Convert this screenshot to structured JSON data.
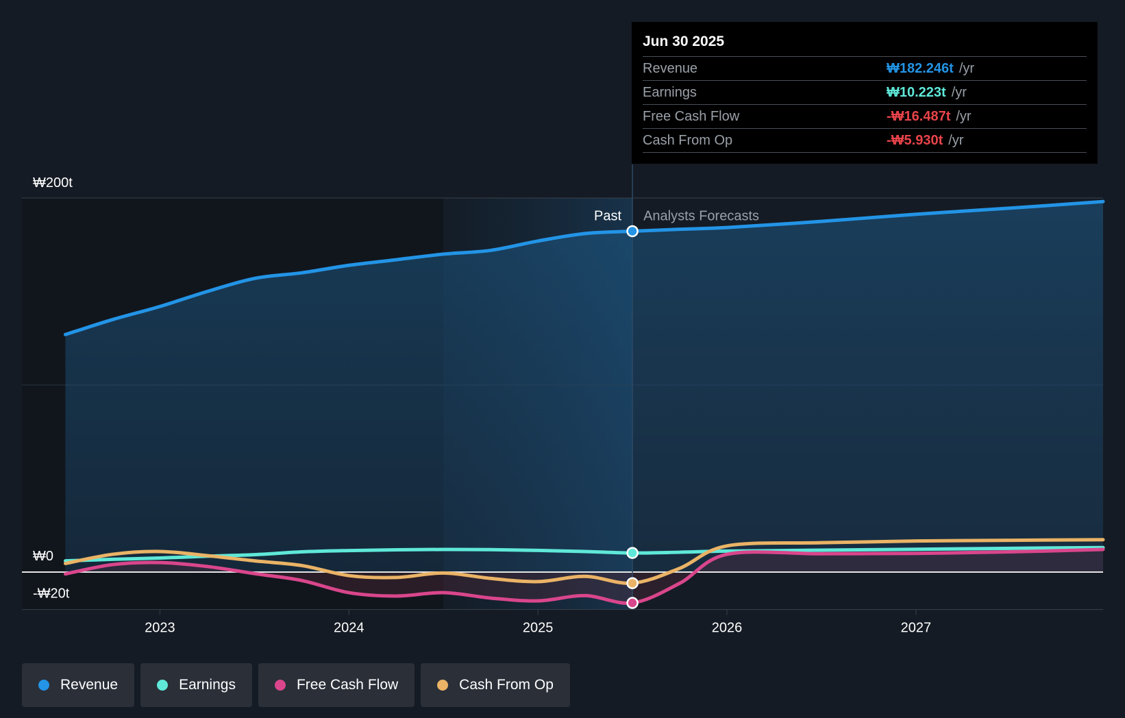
{
  "chart_data": {
    "type": "line",
    "currency_symbol": "₩",
    "y_axis": {
      "min": -20,
      "max": 200,
      "unit": "t",
      "labels": [
        "₩200t",
        "₩0",
        "-₩20t"
      ],
      "label_values": [
        200,
        0,
        -20
      ]
    },
    "x_axis": {
      "min": 2022.27,
      "max": 2027.99,
      "ticks": [
        "2023",
        "2024",
        "2025",
        "2026",
        "2027"
      ],
      "tick_values": [
        2023,
        2024,
        2025,
        2026,
        2027
      ]
    },
    "past_label": "Past",
    "forecast_label": "Analysts Forecasts",
    "divider_x": 2025.5,
    "highlight_start_x": 2024.5,
    "series": [
      {
        "name": "Revenue",
        "color": "#2394e6",
        "area": true,
        "points": [
          [
            2022.5,
            127
          ],
          [
            2022.75,
            135
          ],
          [
            2023.0,
            142
          ],
          [
            2023.25,
            150
          ],
          [
            2023.5,
            157
          ],
          [
            2023.75,
            160
          ],
          [
            2024.0,
            164
          ],
          [
            2024.25,
            167
          ],
          [
            2024.5,
            170
          ],
          [
            2024.75,
            172
          ],
          [
            2025.0,
            177
          ],
          [
            2025.25,
            181
          ],
          [
            2025.5,
            182.246
          ],
          [
            2025.75,
            183.3
          ],
          [
            2026.0,
            184.2
          ],
          [
            2026.5,
            187.5
          ],
          [
            2027.0,
            191.3
          ],
          [
            2027.5,
            194.6
          ],
          [
            2027.99,
            198.1
          ]
        ]
      },
      {
        "name": "Earnings",
        "color": "#5fe8d8",
        "area": false,
        "points": [
          [
            2022.5,
            6
          ],
          [
            2022.75,
            6.8
          ],
          [
            2023.0,
            7.5
          ],
          [
            2023.25,
            8.5
          ],
          [
            2023.5,
            9.3
          ],
          [
            2023.75,
            10.8
          ],
          [
            2024.0,
            11.5
          ],
          [
            2024.25,
            11.9
          ],
          [
            2024.5,
            12.1
          ],
          [
            2024.75,
            12
          ],
          [
            2025.0,
            11.6
          ],
          [
            2025.25,
            11
          ],
          [
            2025.5,
            10.223
          ],
          [
            2025.75,
            10.6
          ],
          [
            2026.0,
            11.2
          ],
          [
            2026.5,
            11.7
          ],
          [
            2027.0,
            12.2
          ],
          [
            2027.5,
            12.7
          ],
          [
            2027.99,
            13.1
          ]
        ]
      },
      {
        "name": "Free Cash Flow",
        "color": "#d9468c",
        "area": false,
        "points": [
          [
            2022.5,
            -1
          ],
          [
            2022.75,
            4
          ],
          [
            2023.0,
            5.1
          ],
          [
            2023.25,
            3
          ],
          [
            2023.5,
            -0.8
          ],
          [
            2023.75,
            -4.5
          ],
          [
            2024.0,
            -11
          ],
          [
            2024.25,
            -12.8
          ],
          [
            2024.5,
            -11
          ],
          [
            2024.75,
            -13.9
          ],
          [
            2025.0,
            -15.4
          ],
          [
            2025.25,
            -12.6
          ],
          [
            2025.5,
            -16.487
          ],
          [
            2025.75,
            -6
          ],
          [
            2026.0,
            9.5
          ],
          [
            2026.5,
            9.8
          ],
          [
            2027.0,
            10
          ],
          [
            2027.5,
            10.8
          ],
          [
            2027.99,
            12.1
          ]
        ]
      },
      {
        "name": "Cash From Op",
        "color": "#eab366",
        "area": false,
        "points": [
          [
            2022.5,
            4.6
          ],
          [
            2022.75,
            9.5
          ],
          [
            2023.0,
            11
          ],
          [
            2023.25,
            8.8
          ],
          [
            2023.5,
            6
          ],
          [
            2023.75,
            3.5
          ],
          [
            2024.0,
            -1.9
          ],
          [
            2024.25,
            -2.9
          ],
          [
            2024.5,
            -0.5
          ],
          [
            2024.75,
            -3.4
          ],
          [
            2025.0,
            -5.1
          ],
          [
            2025.25,
            -2.3
          ],
          [
            2025.5,
            -5.93
          ],
          [
            2025.75,
            2
          ],
          [
            2026.0,
            14
          ],
          [
            2026.5,
            15.7
          ],
          [
            2027.0,
            16.6
          ],
          [
            2027.5,
            17
          ],
          [
            2027.99,
            17.3
          ]
        ]
      }
    ]
  },
  "tooltip": {
    "date": "Jun 30 2025",
    "rows": [
      {
        "label": "Revenue",
        "value": "₩182.246t",
        "unit": "/yr",
        "color": "#2394e6"
      },
      {
        "label": "Earnings",
        "value": "₩10.223t",
        "unit": "/yr",
        "color": "#5fe8d8"
      },
      {
        "label": "Free Cash Flow",
        "value": "-₩16.487t",
        "unit": "/yr",
        "color": "#e8444a"
      },
      {
        "label": "Cash From Op",
        "value": "-₩5.930t",
        "unit": "/yr",
        "color": "#e8444a"
      }
    ]
  },
  "legend": [
    {
      "label": "Revenue",
      "color": "#2394e6"
    },
    {
      "label": "Earnings",
      "color": "#5fe8d8"
    },
    {
      "label": "Free Cash Flow",
      "color": "#d9468c"
    },
    {
      "label": "Cash From Op",
      "color": "#eab366"
    }
  ]
}
